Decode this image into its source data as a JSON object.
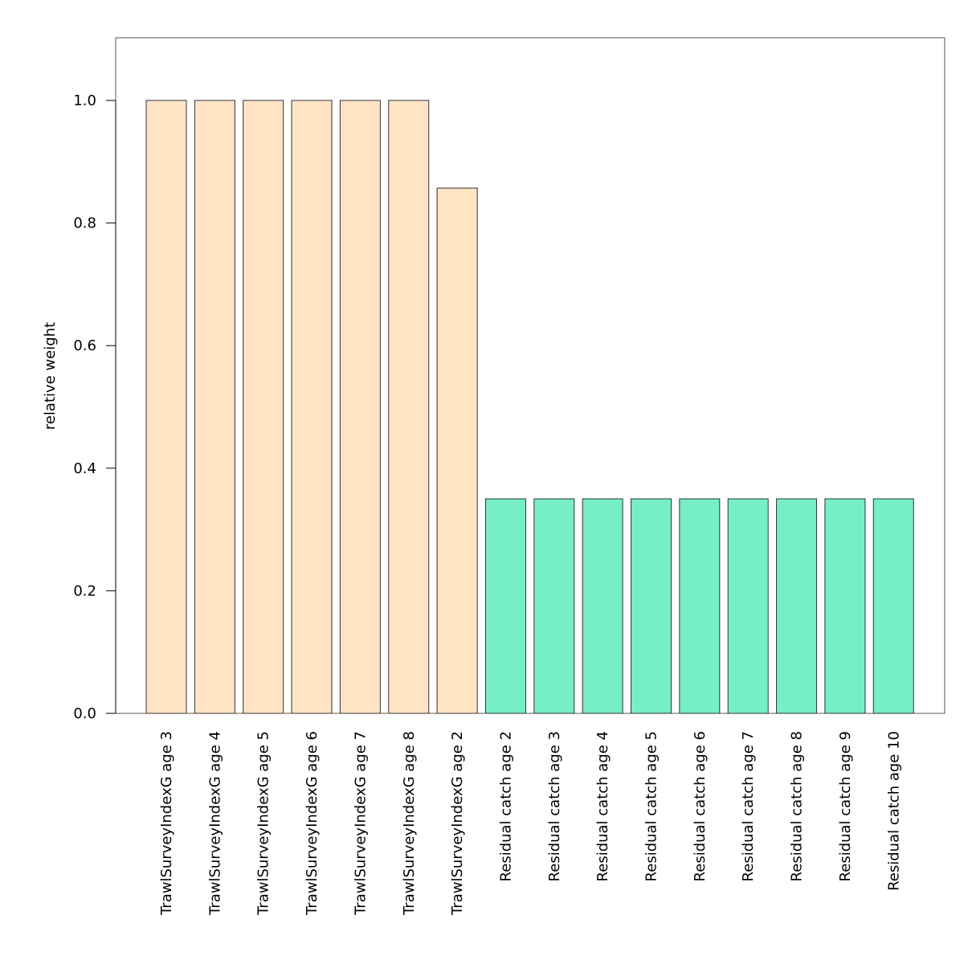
{
  "chart_data": {
    "type": "bar",
    "title": "",
    "xlabel": "",
    "ylabel": "relative weight",
    "ylim": [
      0,
      1.1
    ],
    "yticks": [
      0.0,
      0.2,
      0.4,
      0.6,
      0.8,
      1.0
    ],
    "ytick_labels": [
      "0.0",
      "0.2",
      "0.4",
      "0.6",
      "0.8",
      "1.0"
    ],
    "grid": false,
    "legend": "none",
    "categories": [
      "TrawlSurveyIndexG age 3",
      "TrawlSurveyIndexG age 4",
      "TrawlSurveyIndexG age 5",
      "TrawlSurveyIndexG age 6",
      "TrawlSurveyIndexG age 7",
      "TrawlSurveyIndexG age 8",
      "TrawlSurveyIndexG age 2",
      "Residual catch age 2",
      "Residual catch age 3",
      "Residual catch age 4",
      "Residual catch age 5",
      "Residual catch age 6",
      "Residual catch age 7",
      "Residual catch age 8",
      "Residual catch age 9",
      "Residual catch age 10"
    ],
    "values": [
      1.0,
      1.0,
      1.0,
      1.0,
      1.0,
      1.0,
      0.857,
      0.35,
      0.35,
      0.35,
      0.35,
      0.35,
      0.35,
      0.35,
      0.35,
      0.35
    ],
    "colors": {
      "survey": "#FFE4C4",
      "catch": "#76EEC6",
      "outline": "#333333"
    },
    "bar_groups": [
      "survey",
      "survey",
      "survey",
      "survey",
      "survey",
      "survey",
      "survey",
      "catch",
      "catch",
      "catch",
      "catch",
      "catch",
      "catch",
      "catch",
      "catch",
      "catch"
    ]
  }
}
